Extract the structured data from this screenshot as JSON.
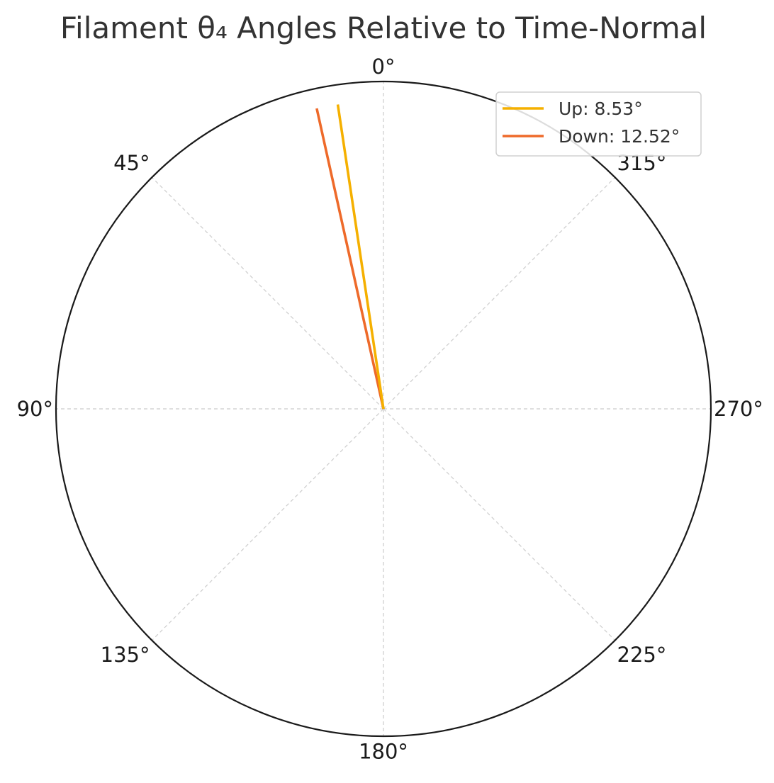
{
  "chart_data": {
    "type": "polar",
    "title": "Filament θ₄ Angles Relative to Time-Normal",
    "theta_zero_location": "top",
    "theta_direction": "counterclockwise",
    "theta_ticks": [
      0,
      45,
      90,
      135,
      180,
      225,
      270,
      315
    ],
    "theta_tick_labels": [
      "0°",
      "45°",
      "90°",
      "135°",
      "180°",
      "225°",
      "270°",
      "315°"
    ],
    "radial_range": [
      0,
      1
    ],
    "grid": true,
    "legend_position": "top-right",
    "series": [
      {
        "name": "Up: 8.53°",
        "angle_deg": 8.53,
        "radius": 0.94,
        "color": "#f5b000"
      },
      {
        "name": "Down: 12.52°",
        "angle_deg": 12.52,
        "radius": 0.94,
        "color": "#ee6a2a"
      }
    ]
  }
}
